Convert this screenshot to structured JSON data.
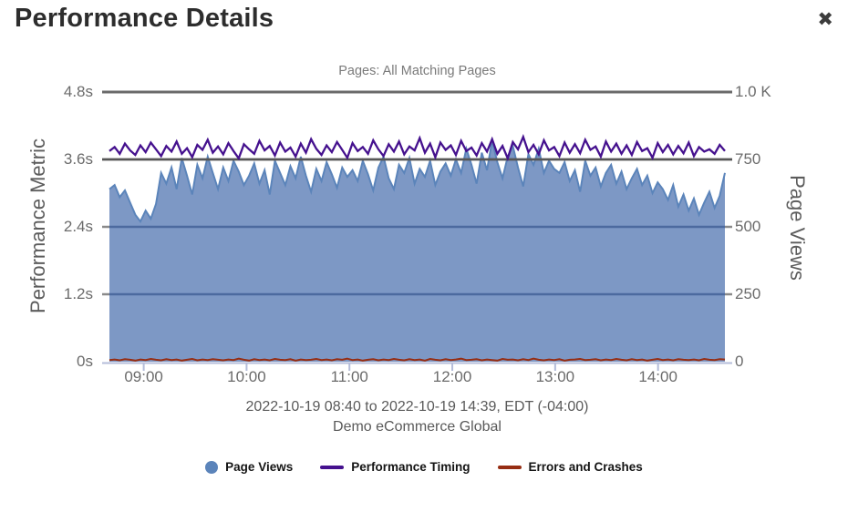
{
  "dialog": {
    "title": "Performance Details",
    "close_label": "✖",
    "close_icon_color": "#3c3c3c"
  },
  "chart": {
    "title": "Pages: All Matching Pages",
    "subtitle_line1": "2022-10-19 08:40 to 2022-10-19 14:39, EDT (-04:00)",
    "subtitle_line2": "Demo eCommerce Global"
  },
  "legend": {
    "items": [
      {
        "label": "Page Views",
        "marker": "circle",
        "color": "#5b84ba"
      },
      {
        "label": "Performance Timing",
        "marker": "line",
        "color": "#45118e"
      },
      {
        "label": "Errors and Crashes",
        "marker": "line",
        "color": "#962d13"
      }
    ]
  },
  "colors": {
    "area_fill": "#7d98c5",
    "pageviews_line": "#5b84ba",
    "timing_line": "#45118e",
    "errors_line": "#962d13",
    "grid_dark_top": "#6a6a6a",
    "grid_dark_mid": "#565656",
    "grid_under_fill": "#4c6a9f",
    "grid_gray_nub": "#8a8a8a",
    "x_axis_line": "#b4bdda",
    "tick_label": "#6b6b6b"
  },
  "chart_data": {
    "type": "area",
    "title": "Pages: All Matching Pages",
    "x_start": "2022-10-19 08:40",
    "x_end": "2022-10-19 14:39",
    "x_ticks": [
      "09:00",
      "10:00",
      "11:00",
      "12:00",
      "13:00",
      "14:00"
    ],
    "x_tick_minutes_from_start": [
      20,
      80,
      140,
      200,
      260,
      320
    ],
    "x_total_minutes": 359,
    "left_axis": {
      "label": "Performance Metric",
      "min": 0,
      "max": 4.8,
      "ticks": [
        "0s",
        "1.2s",
        "2.4s",
        "3.6s",
        "4.8s"
      ]
    },
    "right_axis": {
      "label": "Page Views",
      "min": 0,
      "max": 1000,
      "ticks": [
        "0",
        "250",
        "500",
        "750",
        "1.0 K"
      ]
    },
    "grid": "horizontal",
    "legend_position": "bottom",
    "series": [
      {
        "name": "Page Views",
        "type": "area",
        "axis": "right",
        "color": "#5b84ba",
        "fill": "#7d98c5",
        "values": [
          640,
          655,
          610,
          635,
          590,
          545,
          520,
          560,
          530,
          585,
          700,
          660,
          720,
          640,
          755,
          690,
          620,
          730,
          680,
          760,
          700,
          640,
          720,
          670,
          745,
          705,
          655,
          690,
          735,
          660,
          710,
          620,
          745,
          700,
          655,
          725,
          680,
          760,
          690,
          630,
          715,
          670,
          740,
          695,
          645,
          720,
          685,
          710,
          670,
          745,
          695,
          635,
          720,
          760,
          680,
          640,
          730,
          700,
          755,
          660,
          715,
          685,
          745,
          655,
          705,
          735,
          690,
          750,
          700,
          790,
          730,
          660,
          775,
          710,
          820,
          740,
          680,
          760,
          800,
          720,
          650,
          770,
          730,
          790,
          700,
          745,
          715,
          700,
          740,
          670,
          710,
          630,
          745,
          690,
          720,
          650,
          700,
          730,
          660,
          705,
          640,
          680,
          715,
          655,
          690,
          625,
          665,
          640,
          600,
          655,
          575,
          620,
          560,
          605,
          545,
          590,
          630,
          570,
          615,
          700
        ]
      },
      {
        "name": "Performance Timing",
        "type": "line",
        "axis": "left",
        "color": "#45118e",
        "values": [
          3.75,
          3.82,
          3.7,
          3.88,
          3.76,
          3.68,
          3.85,
          3.73,
          3.9,
          3.78,
          3.66,
          3.84,
          3.74,
          3.92,
          3.7,
          3.8,
          3.64,
          3.86,
          3.77,
          3.95,
          3.72,
          3.83,
          3.69,
          3.89,
          3.75,
          3.62,
          3.87,
          3.78,
          3.7,
          3.93,
          3.76,
          3.84,
          3.67,
          3.9,
          3.74,
          3.81,
          3.65,
          3.88,
          3.72,
          3.96,
          3.79,
          3.68,
          3.85,
          3.73,
          3.91,
          3.77,
          3.63,
          3.89,
          3.75,
          3.82,
          3.7,
          3.94,
          3.78,
          3.66,
          3.87,
          3.74,
          3.92,
          3.69,
          3.83,
          3.76,
          3.98,
          3.72,
          3.88,
          3.64,
          3.9,
          3.77,
          3.85,
          3.68,
          3.93,
          3.75,
          3.81,
          3.67,
          3.89,
          3.74,
          3.96,
          3.7,
          3.84,
          3.62,
          3.91,
          3.78,
          4.0,
          3.73,
          3.86,
          3.69,
          3.94,
          3.76,
          3.82,
          3.66,
          3.9,
          3.72,
          3.87,
          3.71,
          3.95,
          3.77,
          3.83,
          3.65,
          3.92,
          3.74,
          3.88,
          3.7,
          3.85,
          3.68,
          3.91,
          3.75,
          3.8,
          3.63,
          3.89,
          3.73,
          3.86,
          3.69,
          3.84,
          3.71,
          3.9,
          3.66,
          3.82,
          3.74,
          3.78,
          3.7,
          3.86,
          3.75
        ]
      },
      {
        "name": "Errors and Crashes",
        "type": "line",
        "axis": "right",
        "color": "#962d13",
        "values": [
          6,
          8,
          5,
          9,
          7,
          4,
          8,
          6,
          10,
          7,
          5,
          9,
          6,
          8,
          4,
          7,
          10,
          5,
          8,
          6,
          9,
          7,
          5,
          8,
          6,
          11,
          7,
          4,
          9,
          6,
          8,
          5,
          10,
          7,
          6,
          9,
          4,
          8,
          6,
          7,
          10,
          6,
          8,
          5,
          9,
          7,
          11,
          6,
          8,
          4,
          7,
          9,
          5,
          8,
          6,
          10,
          7,
          5,
          9,
          6,
          8,
          4,
          10,
          7,
          5,
          9,
          6,
          8,
          11,
          6,
          7,
          9,
          5,
          8,
          6,
          4,
          10,
          7,
          8,
          5,
          9,
          6,
          11,
          7,
          5,
          8,
          6,
          9,
          4,
          7,
          8,
          10,
          6,
          7,
          9,
          5,
          8,
          6,
          10,
          7,
          5,
          9,
          6,
          8,
          4,
          7,
          10,
          6,
          8,
          5,
          9,
          7,
          6,
          8,
          5,
          10,
          7,
          6,
          9,
          8
        ]
      }
    ]
  }
}
